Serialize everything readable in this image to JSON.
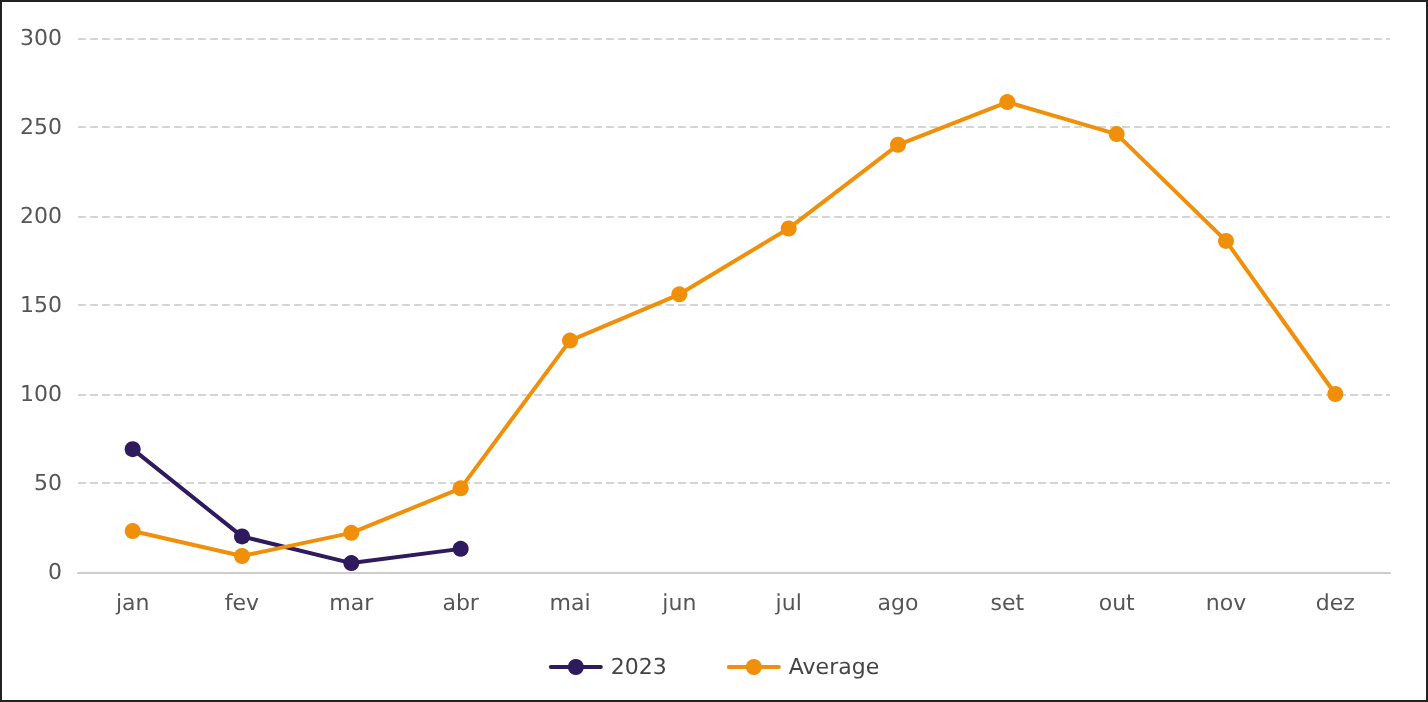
{
  "chart_data": {
    "type": "line",
    "categories": [
      "jan",
      "fev",
      "mar",
      "abr",
      "mai",
      "jun",
      "jul",
      "ago",
      "set",
      "out",
      "nov",
      "dez"
    ],
    "series": [
      {
        "name": "2023",
        "color": "#2e1a5c",
        "values": [
          69,
          20,
          5,
          13,
          null,
          null,
          null,
          null,
          null,
          null,
          null,
          null
        ]
      },
      {
        "name": "Average",
        "color": "#f0900a",
        "values": [
          23,
          9,
          22,
          47,
          130,
          156,
          193,
          240,
          264,
          246,
          186,
          100
        ]
      }
    ],
    "ylim": [
      0,
      300
    ],
    "yticks": [
      0,
      50,
      100,
      150,
      200,
      250,
      300
    ],
    "grid": "y",
    "legend": "bottom",
    "marker": "circle",
    "line_style": "solid"
  }
}
